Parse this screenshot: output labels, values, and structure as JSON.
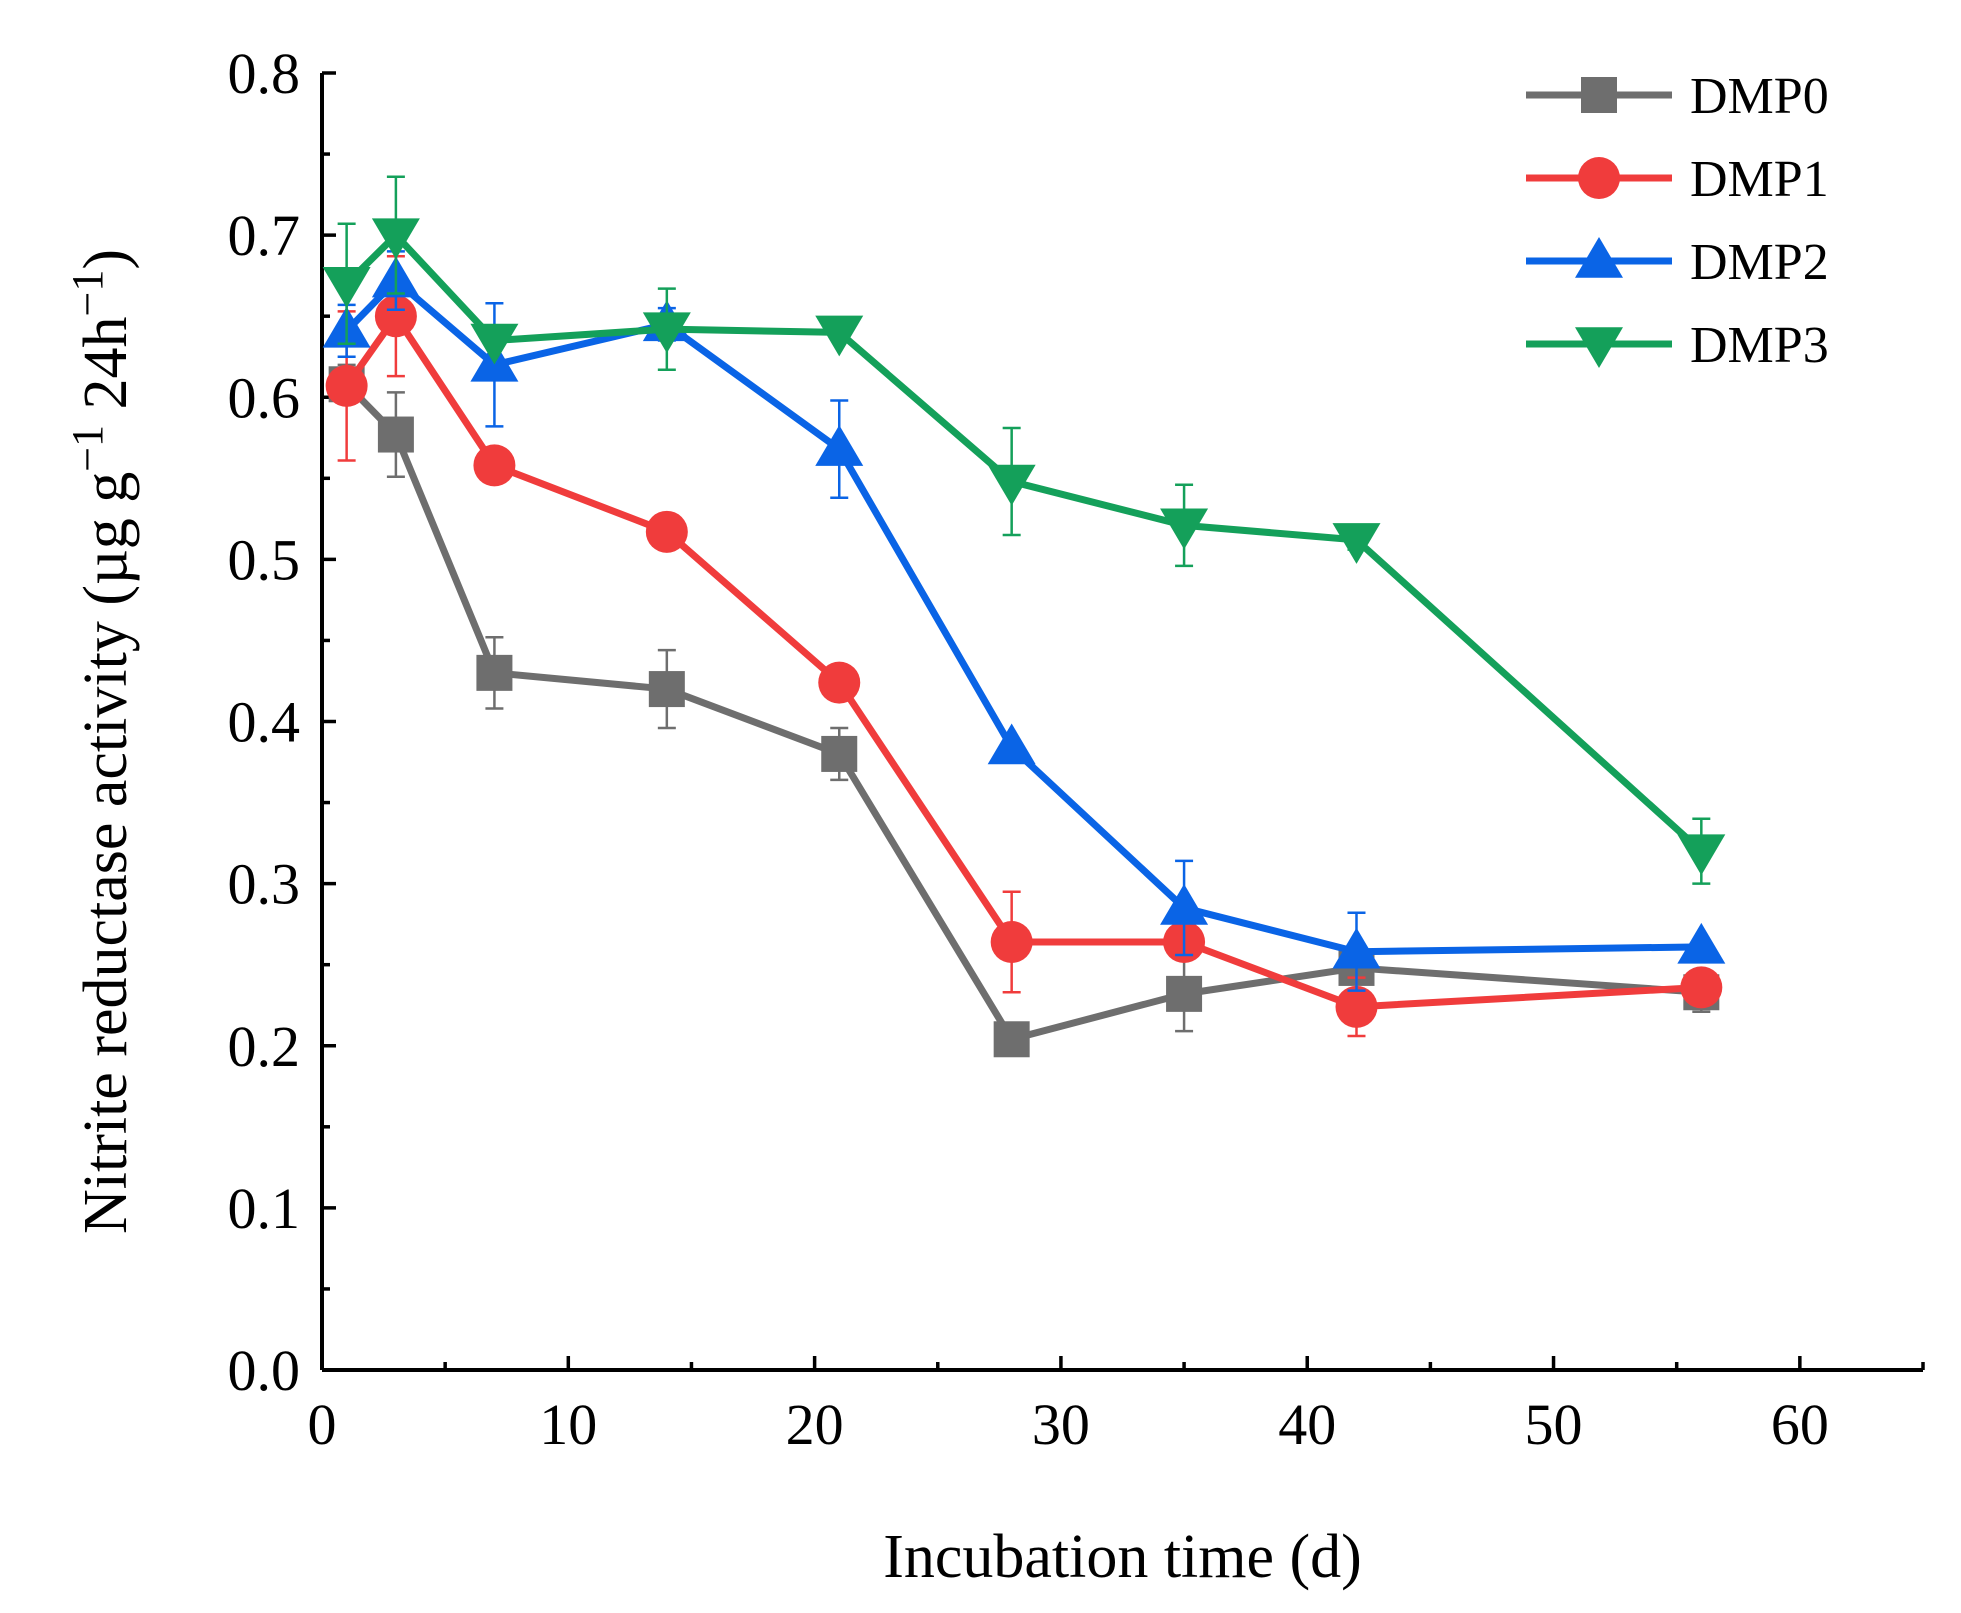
{
  "chart_data": {
    "type": "line",
    "xlabel": "Incubation time (d)",
    "ylabel": {
      "text": "Nitrite reductase activity (µg g",
      "sup1": "−1",
      "mid": " 24h",
      "sup2": "−1",
      "close": ")"
    },
    "xlim": [
      0,
      65
    ],
    "ylim": [
      0.0,
      0.8
    ],
    "x_ticks": [
      0,
      10,
      20,
      30,
      40,
      50,
      60
    ],
    "x_tick_labels": [
      "0",
      "10",
      "20",
      "30",
      "40",
      "50",
      "60"
    ],
    "x_minor_ticks": [
      5,
      15,
      25,
      35,
      45,
      55,
      65
    ],
    "y_ticks": [
      0.0,
      0.1,
      0.2,
      0.3,
      0.4,
      0.5,
      0.6,
      0.7,
      0.8
    ],
    "y_tick_labels": [
      "0.0",
      "0.1",
      "0.2",
      "0.3",
      "0.4",
      "0.5",
      "0.6",
      "0.7",
      "0.8"
    ],
    "y_minor_ticks": [
      0.05,
      0.15,
      0.25,
      0.35,
      0.45,
      0.55,
      0.65,
      0.75
    ],
    "legend_position": "top-right",
    "x": [
      1,
      3,
      7,
      14,
      21,
      28,
      35,
      42,
      56
    ],
    "series": [
      {
        "name": "DMP0",
        "color": "#6e6e6e",
        "marker": "square",
        "values": [
          0.608,
          0.577,
          0.43,
          0.42,
          0.38,
          0.204,
          0.232,
          0.248,
          0.233
        ],
        "errors": [
          0.012,
          0.026,
          0.022,
          0.024,
          0.016,
          0.003,
          0.023,
          0.01,
          0.012
        ]
      },
      {
        "name": "DMP1",
        "color": "#f03c3c",
        "marker": "circle",
        "values": [
          0.607,
          0.65,
          0.558,
          0.517,
          0.424,
          0.264,
          0.264,
          0.224,
          0.236
        ],
        "errors": [
          0.046,
          0.037,
          0.004,
          0.004,
          0.004,
          0.031,
          0.004,
          0.018,
          0.004
        ]
      },
      {
        "name": "DMP2",
        "color": "#0a64e6",
        "marker": "triangle-up",
        "values": [
          0.641,
          0.672,
          0.62,
          0.645,
          0.568,
          0.384,
          0.285,
          0.258,
          0.261
        ],
        "errors": [
          0.016,
          0.018,
          0.038,
          0.01,
          0.03,
          0.003,
          0.029,
          0.024,
          0.004
        ]
      },
      {
        "name": "DMP3",
        "color": "#14a05a",
        "marker": "triangle-down",
        "values": [
          0.67,
          0.7,
          0.635,
          0.642,
          0.64,
          0.548,
          0.521,
          0.512,
          0.32
        ],
        "errors": [
          0.037,
          0.036,
          0.003,
          0.025,
          0.003,
          0.033,
          0.025,
          0.006,
          0.02
        ]
      }
    ]
  }
}
